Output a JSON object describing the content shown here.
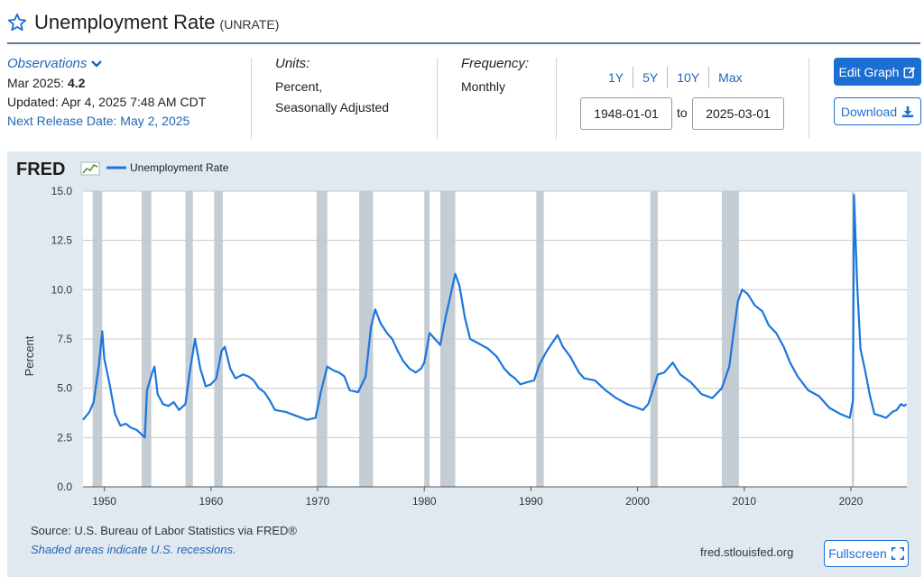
{
  "header": {
    "title": "Unemployment Rate",
    "series_id": "(UNRATE)"
  },
  "observations": {
    "label": "Observations",
    "latest_label": "Mar 2025:",
    "latest_value": "4.2",
    "updated": "Updated: Apr 4, 2025 7:48 AM CDT",
    "next_release": "Next Release Date: May 2, 2025"
  },
  "units": {
    "label": "Units:",
    "line1": "Percent,",
    "line2": "Seasonally Adjusted"
  },
  "frequency": {
    "label": "Frequency:",
    "value": "Monthly"
  },
  "ranges": [
    "1Y",
    "5Y",
    "10Y",
    "Max"
  ],
  "dates": {
    "start": "1948-01-01",
    "to_label": "to",
    "end": "2025-03-01"
  },
  "buttons": {
    "edit": "Edit Graph",
    "download": "Download",
    "fullscreen": "Fullscreen"
  },
  "footer": {
    "source": "Source: U.S. Bureau of Labor Statistics via FRED®",
    "shaded": "Shaded areas indicate U.S. recessions.",
    "site": "fred.stlouisfed.org"
  },
  "colors": {
    "line": "#1b76dc",
    "recession": "#c4ccd4",
    "accent": "#1b6fd2",
    "panel": "#e1e9f0"
  },
  "chart_data": {
    "type": "line",
    "logo": "FRED",
    "legend_placement": "top-left",
    "ylabel": "Percent",
    "ylim": [
      0,
      15
    ],
    "xlim": [
      1948.0,
      2025.25
    ],
    "y_ticks": [
      "0.0",
      "2.5",
      "5.0",
      "7.5",
      "10.0",
      "12.5",
      "15.0"
    ],
    "x_ticks": [
      "1950",
      "1960",
      "1970",
      "1980",
      "1990",
      "2000",
      "2010",
      "2020"
    ],
    "grid": true,
    "recessions": [
      [
        1948.9,
        1949.8
      ],
      [
        1953.5,
        1954.4
      ],
      [
        1957.6,
        1958.3
      ],
      [
        1960.3,
        1961.1
      ],
      [
        1969.9,
        1970.9
      ],
      [
        1973.9,
        1975.2
      ],
      [
        1980.0,
        1980.5
      ],
      [
        1981.5,
        1982.9
      ],
      [
        1990.5,
        1991.2
      ],
      [
        2001.2,
        2001.9
      ],
      [
        2007.9,
        2009.5
      ],
      [
        2020.1,
        2020.3
      ]
    ],
    "series": [
      {
        "name": "Unemployment Rate",
        "points": [
          [
            1948.0,
            3.4
          ],
          [
            1948.6,
            3.8
          ],
          [
            1949.0,
            4.3
          ],
          [
            1949.5,
            6.2
          ],
          [
            1949.8,
            7.9
          ],
          [
            1950.0,
            6.5
          ],
          [
            1950.5,
            5.2
          ],
          [
            1951.0,
            3.7
          ],
          [
            1951.5,
            3.1
          ],
          [
            1952.0,
            3.2
          ],
          [
            1952.5,
            3.0
          ],
          [
            1953.0,
            2.9
          ],
          [
            1953.6,
            2.6
          ],
          [
            1953.8,
            2.5
          ],
          [
            1954.0,
            4.9
          ],
          [
            1954.5,
            5.8
          ],
          [
            1954.7,
            6.1
          ],
          [
            1955.0,
            4.7
          ],
          [
            1955.5,
            4.2
          ],
          [
            1956.0,
            4.1
          ],
          [
            1956.5,
            4.3
          ],
          [
            1957.0,
            3.9
          ],
          [
            1957.6,
            4.2
          ],
          [
            1958.0,
            5.8
          ],
          [
            1958.5,
            7.5
          ],
          [
            1959.0,
            6.0
          ],
          [
            1959.5,
            5.1
          ],
          [
            1960.0,
            5.2
          ],
          [
            1960.5,
            5.5
          ],
          [
            1961.0,
            6.9
          ],
          [
            1961.3,
            7.1
          ],
          [
            1961.8,
            6.0
          ],
          [
            1962.3,
            5.5
          ],
          [
            1963.0,
            5.7
          ],
          [
            1963.5,
            5.6
          ],
          [
            1964.0,
            5.4
          ],
          [
            1964.5,
            5.0
          ],
          [
            1965.0,
            4.8
          ],
          [
            1965.5,
            4.4
          ],
          [
            1966.0,
            3.9
          ],
          [
            1967.0,
            3.8
          ],
          [
            1968.0,
            3.6
          ],
          [
            1969.0,
            3.4
          ],
          [
            1969.8,
            3.5
          ],
          [
            1970.3,
            4.8
          ],
          [
            1970.9,
            6.1
          ],
          [
            1971.5,
            5.9
          ],
          [
            1972.0,
            5.8
          ],
          [
            1972.5,
            5.6
          ],
          [
            1973.0,
            4.9
          ],
          [
            1973.8,
            4.8
          ],
          [
            1974.5,
            5.6
          ],
          [
            1975.0,
            8.1
          ],
          [
            1975.4,
            9.0
          ],
          [
            1975.9,
            8.3
          ],
          [
            1976.5,
            7.8
          ],
          [
            1977.0,
            7.5
          ],
          [
            1977.5,
            6.9
          ],
          [
            1978.0,
            6.4
          ],
          [
            1978.6,
            6.0
          ],
          [
            1979.2,
            5.8
          ],
          [
            1979.7,
            6.0
          ],
          [
            1980.0,
            6.3
          ],
          [
            1980.5,
            7.8
          ],
          [
            1981.0,
            7.5
          ],
          [
            1981.5,
            7.2
          ],
          [
            1982.0,
            8.6
          ],
          [
            1982.5,
            9.8
          ],
          [
            1982.9,
            10.8
          ],
          [
            1983.3,
            10.2
          ],
          [
            1983.8,
            8.6
          ],
          [
            1984.3,
            7.5
          ],
          [
            1985.0,
            7.3
          ],
          [
            1986.0,
            7.0
          ],
          [
            1986.8,
            6.6
          ],
          [
            1987.5,
            6.0
          ],
          [
            1988.0,
            5.7
          ],
          [
            1988.5,
            5.5
          ],
          [
            1989.0,
            5.2
          ],
          [
            1989.6,
            5.3
          ],
          [
            1990.3,
            5.4
          ],
          [
            1990.8,
            6.2
          ],
          [
            1991.5,
            6.9
          ],
          [
            1992.0,
            7.3
          ],
          [
            1992.5,
            7.7
          ],
          [
            1993.0,
            7.1
          ],
          [
            1993.7,
            6.6
          ],
          [
            1994.5,
            5.8
          ],
          [
            1995.0,
            5.5
          ],
          [
            1996.0,
            5.4
          ],
          [
            1997.0,
            4.9
          ],
          [
            1998.0,
            4.5
          ],
          [
            1999.0,
            4.2
          ],
          [
            2000.0,
            4.0
          ],
          [
            2000.5,
            3.9
          ],
          [
            2001.0,
            4.2
          ],
          [
            2001.9,
            5.7
          ],
          [
            2002.5,
            5.8
          ],
          [
            2003.3,
            6.3
          ],
          [
            2004.0,
            5.7
          ],
          [
            2005.0,
            5.3
          ],
          [
            2006.0,
            4.7
          ],
          [
            2007.0,
            4.5
          ],
          [
            2007.9,
            5.0
          ],
          [
            2008.6,
            6.1
          ],
          [
            2009.0,
            7.8
          ],
          [
            2009.4,
            9.4
          ],
          [
            2009.8,
            10.0
          ],
          [
            2010.3,
            9.8
          ],
          [
            2011.0,
            9.2
          ],
          [
            2011.7,
            8.9
          ],
          [
            2012.3,
            8.2
          ],
          [
            2013.0,
            7.8
          ],
          [
            2013.7,
            7.1
          ],
          [
            2014.3,
            6.3
          ],
          [
            2015.0,
            5.6
          ],
          [
            2016.0,
            4.9
          ],
          [
            2017.0,
            4.6
          ],
          [
            2018.0,
            4.0
          ],
          [
            2019.0,
            3.7
          ],
          [
            2019.9,
            3.5
          ],
          [
            2020.2,
            4.4
          ],
          [
            2020.3,
            14.8
          ],
          [
            2020.6,
            10.2
          ],
          [
            2020.9,
            7.0
          ],
          [
            2021.3,
            6.0
          ],
          [
            2021.8,
            4.6
          ],
          [
            2022.2,
            3.7
          ],
          [
            2022.8,
            3.6
          ],
          [
            2023.3,
            3.5
          ],
          [
            2023.9,
            3.8
          ],
          [
            2024.3,
            3.9
          ],
          [
            2024.7,
            4.2
          ],
          [
            2025.0,
            4.1
          ],
          [
            2025.2,
            4.2
          ]
        ]
      }
    ]
  }
}
